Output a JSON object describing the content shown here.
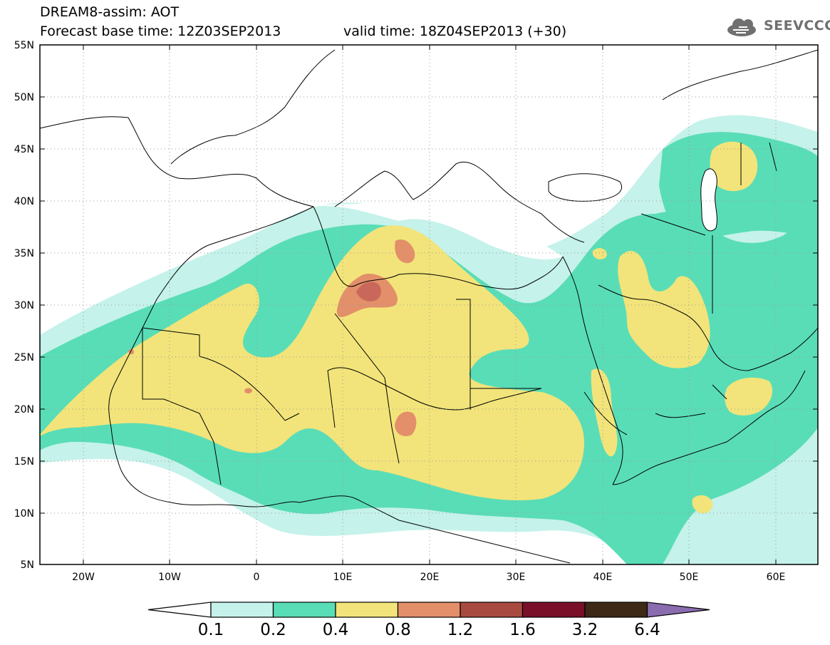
{
  "header": {
    "title": "DREAM8-assim: AOT",
    "base_time": "Forecast base time: 12Z03SEP2013",
    "valid_time": "valid time: 18Z04SEP2013 (+30)",
    "logo_text": "SEEVCCC"
  },
  "axes": {
    "lat_labels": [
      "55N",
      "50N",
      "45N",
      "40N",
      "35N",
      "30N",
      "25N",
      "20N",
      "15N",
      "10N",
      "5N"
    ],
    "lon_labels": [
      "20W",
      "10W",
      "0",
      "10E",
      "20E",
      "30E",
      "40E",
      "50E",
      "60E"
    ]
  },
  "colorbar": {
    "labels": [
      "0.1",
      "0.2",
      "0.4",
      "0.8",
      "1.2",
      "1.6",
      "3.2",
      "6.4"
    ],
    "colors": [
      "#ffffff",
      "#c5f2ea",
      "#59ddb7",
      "#f2e47a",
      "#e38f6a",
      "#a84a40",
      "#7a0f2a",
      "#3d2915",
      "#8a6cb0"
    ]
  },
  "field_colors": {
    "c01": "#c5f2ea",
    "c02": "#59ddb7",
    "c04": "#f2e47a",
    "c08": "#e38f6a",
    "c12": "#c9685a"
  }
}
